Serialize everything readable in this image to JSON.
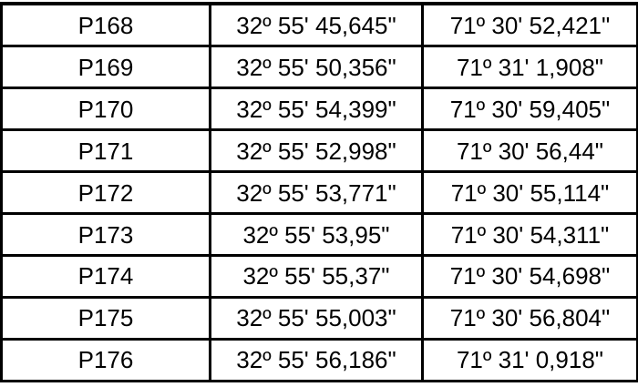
{
  "table": {
    "colors": {
      "border": "#000000",
      "background": "#ffffff",
      "text": "#000000"
    },
    "rows": [
      {
        "point": "P168",
        "lat": "32º 55' 45,645\"",
        "lon": "71º 30' 52,421\""
      },
      {
        "point": "P169",
        "lat": "32º 55' 50,356\"",
        "lon": "71º 31' 1,908\""
      },
      {
        "point": "P170",
        "lat": "32º 55' 54,399\"",
        "lon": "71º 30' 59,405\""
      },
      {
        "point": "P171",
        "lat": "32º 55' 52,998\"",
        "lon": "71º 30' 56,44\""
      },
      {
        "point": "P172",
        "lat": "32º 55' 53,771\"",
        "lon": "71º 30' 55,114\""
      },
      {
        "point": "P173",
        "lat": "32º 55' 53,95\"",
        "lon": "71º 30' 54,311\""
      },
      {
        "point": "P174",
        "lat": "32º 55' 55,37\"",
        "lon": "71º 30' 54,698\""
      },
      {
        "point": "P175",
        "lat": "32º 55' 55,003\"",
        "lon": "71º 30' 56,804\""
      },
      {
        "point": "P176",
        "lat": "32º 55' 56,186\"",
        "lon": "71º 31' 0,918\""
      }
    ]
  }
}
